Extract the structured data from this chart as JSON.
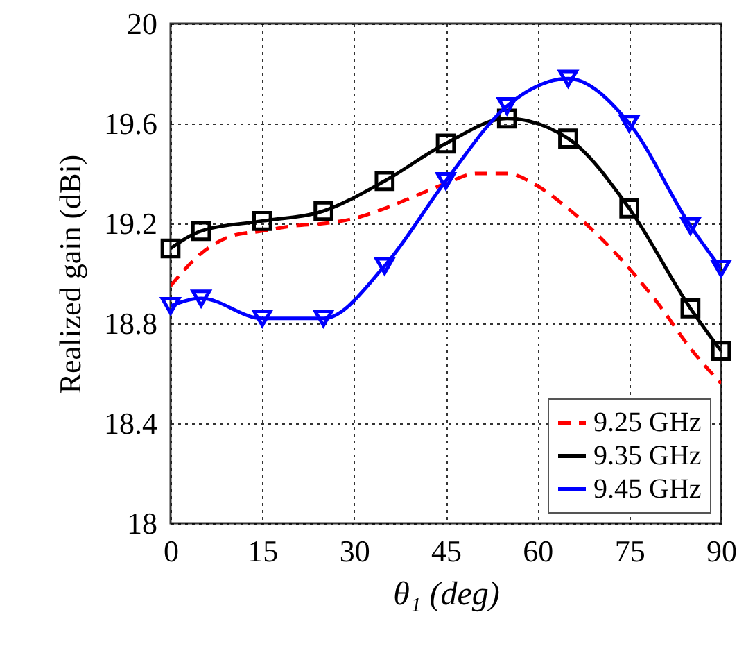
{
  "chart_data": {
    "type": "line",
    "xlabel": "θ₁ (deg)",
    "ylabel": "Realized gain (dBi)",
    "xlim": [
      0,
      90
    ],
    "ylim": [
      18,
      20
    ],
    "xticks": [
      0,
      15,
      30,
      45,
      60,
      75,
      90
    ],
    "yticks": [
      18,
      18.4,
      18.8,
      19.2,
      19.6,
      20
    ],
    "grid": true,
    "legend": "bottom right",
    "series": [
      {
        "name": "9.25 GHz",
        "color": "#ff0000",
        "line_style": "dashed",
        "marker": "none",
        "x": [
          0,
          5,
          10,
          15,
          20,
          25,
          30,
          35,
          40,
          45,
          50,
          55,
          60,
          65,
          70,
          75,
          80,
          85,
          90
        ],
        "values": [
          18.95,
          19.08,
          19.15,
          19.17,
          19.19,
          19.2,
          19.22,
          19.26,
          19.31,
          19.36,
          19.4,
          19.4,
          19.35,
          19.26,
          19.15,
          19.02,
          18.87,
          18.7,
          18.56
        ]
      },
      {
        "name": "9.35 GHz",
        "color": "#000000",
        "line_style": "solid",
        "marker": "square",
        "x": [
          0,
          5,
          15,
          25,
          35,
          45,
          55,
          65,
          75,
          85,
          90
        ],
        "values": [
          19.1,
          19.17,
          19.21,
          19.25,
          19.37,
          19.52,
          19.62,
          19.54,
          19.26,
          18.86,
          18.69
        ]
      },
      {
        "name": "9.45 GHz",
        "color": "#0000ff",
        "line_style": "solid",
        "marker": "triangle",
        "x": [
          0,
          5,
          15,
          25,
          35,
          45,
          55,
          65,
          75,
          85,
          90
        ],
        "values": [
          18.87,
          18.9,
          18.82,
          18.82,
          19.03,
          19.37,
          19.67,
          19.78,
          19.6,
          19.19,
          19.02
        ]
      }
    ]
  }
}
